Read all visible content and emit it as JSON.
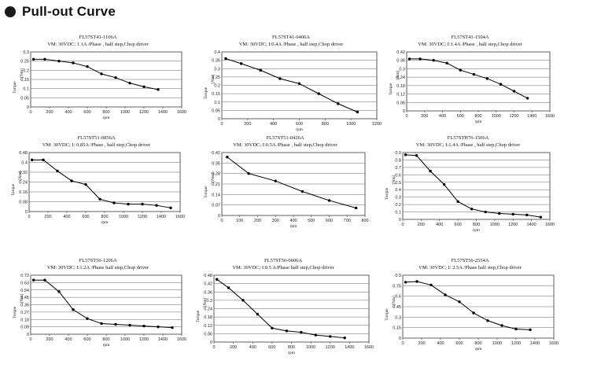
{
  "page": {
    "title": "Pull-out Curve"
  },
  "chart_data": [
    {
      "type": "line",
      "title": "FL57ST41-1106A",
      "subtitle": "VM: 30VDC;  1.1A /Phase , half step,Chop driver",
      "xlabel": "rpm",
      "ylabel": "Torque",
      "unit": "[Nm]",
      "xlim": [
        0,
        1600
      ],
      "xticks": [
        0,
        200,
        400,
        600,
        800,
        1000,
        1200,
        1400,
        1600
      ],
      "ylim": [
        0,
        0.3
      ],
      "yticks": [
        "0",
        "0.05",
        "0.1",
        "0.15",
        "0.2",
        "0.25",
        "0.3"
      ],
      "x": [
        30,
        150,
        300,
        450,
        600,
        750,
        900,
        1050,
        1200,
        1350
      ],
      "y": [
        0.26,
        0.26,
        0.25,
        0.24,
        0.22,
        0.18,
        0.16,
        0.13,
        0.11,
        0.095
      ]
    },
    {
      "type": "line",
      "title": "FL57ST41-0406A",
      "subtitle": "VM: 30VDC;  I:0.4A /Phase , half step,Chop driver",
      "xlabel": "rpm",
      "ylabel": "Torque",
      "unit": "[Nm]",
      "xlim": [
        0,
        1200
      ],
      "xticks": [
        0,
        200,
        400,
        600,
        800,
        1000,
        1200
      ],
      "ylim": [
        0,
        0.4
      ],
      "yticks": [
        "0",
        "0.05",
        "0.1",
        "0.15",
        "0.2",
        "0.25",
        "0.3",
        "0.35",
        "0.4"
      ],
      "x": [
        30,
        150,
        300,
        450,
        600,
        750,
        900,
        1050
      ],
      "y": [
        0.36,
        0.33,
        0.29,
        0.24,
        0.21,
        0.15,
        0.09,
        0.04
      ]
    },
    {
      "type": "line",
      "title": "FL57ST41-1504A",
      "subtitle": "VM: 30VDC;  I:1.4A /Phase , half step,Chop driver",
      "xlabel": "rpm",
      "ylabel": "Torque",
      "unit": "[Nm]",
      "xlim": [
        0,
        1600
      ],
      "xticks": [
        0,
        200,
        400,
        600,
        800,
        1000,
        1200,
        1400,
        1600
      ],
      "ylim": [
        0,
        0.42
      ],
      "yticks": [
        "0",
        "0.06",
        "0.12",
        "0.18",
        "0.24",
        "0.3",
        "0.36",
        "0.42"
      ],
      "x": [
        30,
        150,
        300,
        450,
        600,
        750,
        900,
        1050,
        1200,
        1350
      ],
      "y": [
        0.37,
        0.37,
        0.36,
        0.34,
        0.29,
        0.26,
        0.23,
        0.19,
        0.14,
        0.09
      ]
    },
    {
      "type": "line",
      "title": "FL57ST51-0856A",
      "subtitle": "VM: 30VDC;  I: 0.85A /Phase , half step,Chop driver",
      "xlabel": "rpm",
      "ylabel": "Torque",
      "unit": "[Nm]",
      "xlim": [
        0,
        1600
      ],
      "xticks": [
        0,
        200,
        400,
        600,
        800,
        1000,
        1200,
        1400,
        1600
      ],
      "ylim": [
        0,
        0.48
      ],
      "yticks": [
        "0",
        "0.08",
        "0.16",
        "0.24",
        "0.32",
        "0.4",
        "0.48"
      ],
      "x": [
        30,
        150,
        300,
        450,
        600,
        750,
        900,
        1050,
        1200,
        1350,
        1500
      ],
      "y": [
        0.42,
        0.42,
        0.33,
        0.25,
        0.22,
        0.1,
        0.07,
        0.06,
        0.06,
        0.05,
        0.03
      ]
    },
    {
      "type": "line",
      "title": "FL57ST51-0426A",
      "subtitle": "VM: 30VDC;  I:0.5A /Phase , half step,Chop driver",
      "xlabel": "rpm",
      "ylabel": "Torque",
      "unit": "[Nm]",
      "xlim": [
        0,
        800
      ],
      "xticks": [
        0,
        100,
        200,
        300,
        400,
        500,
        600,
        700,
        800
      ],
      "ylim": [
        0,
        0.42
      ],
      "yticks": [
        "0",
        "0.07",
        "0.14",
        "0.21",
        "0.28",
        "0.35",
        "0.42"
      ],
      "x": [
        30,
        150,
        300,
        450,
        600,
        750
      ],
      "y": [
        0.39,
        0.28,
        0.23,
        0.16,
        0.1,
        0.05
      ]
    },
    {
      "type": "line",
      "title": "FL57STH76-1506A",
      "subtitle": "VM: 30VDC;  I:1.4A /Phase , half step,Chop driver",
      "xlabel": "rpm",
      "ylabel": "Torque",
      "unit": "[Nm]",
      "xlim": [
        0,
        1600
      ],
      "xticks": [
        0,
        200,
        400,
        600,
        800,
        1000,
        1200,
        1400,
        1600
      ],
      "ylim": [
        0,
        0.9
      ],
      "yticks": [
        "0",
        "0.1",
        "0.2",
        "0.3",
        "0.4",
        "0.5",
        "0.6",
        "0.7",
        "0.8",
        "0.9"
      ],
      "x": [
        30,
        150,
        300,
        450,
        600,
        750,
        900,
        1050,
        1200,
        1350,
        1500
      ],
      "y": [
        0.87,
        0.86,
        0.65,
        0.47,
        0.24,
        0.14,
        0.1,
        0.08,
        0.07,
        0.06,
        0.03
      ]
    },
    {
      "type": "line",
      "title": "FL57ST56-1206A",
      "subtitle": "VM: 30VDC;  I:1.2A /Phase  half step,Chop driver",
      "xlabel": "rpm",
      "ylabel": "Torque",
      "unit": "[Nm]",
      "xlim": [
        0,
        1600
      ],
      "xticks": [
        0,
        200,
        400,
        600,
        800,
        1000,
        1200,
        1400,
        1600
      ],
      "ylim": [
        0,
        0.72
      ],
      "yticks": [
        "0",
        "0.09",
        "0.18",
        "0.27",
        "0.36",
        "0.45",
        "0.54",
        "0.63",
        "0.72"
      ],
      "x": [
        30,
        150,
        300,
        450,
        600,
        750,
        900,
        1050,
        1200,
        1350,
        1500
      ],
      "y": [
        0.66,
        0.66,
        0.52,
        0.3,
        0.19,
        0.13,
        0.12,
        0.11,
        0.1,
        0.09,
        0.08
      ]
    },
    {
      "type": "line",
      "title": "FL57ST56-0606A",
      "subtitle": "VM: 30VDC;  I:0.5 A/Phase  half step,Chop driver",
      "xlabel": "rpm",
      "ylabel": "Torque",
      "unit": "[Nm]",
      "xlim": [
        0,
        1600
      ],
      "xticks": [
        0,
        200,
        400,
        600,
        800,
        1000,
        1200,
        1400,
        1600
      ],
      "ylim": [
        0,
        0.48
      ],
      "yticks": [
        "0",
        "0.06",
        "0.12",
        "0.18",
        "0.24",
        "0.3",
        "0.36",
        "0.42",
        "0.48"
      ],
      "x": [
        30,
        150,
        300,
        450,
        600,
        750,
        900,
        1050,
        1200,
        1350
      ],
      "y": [
        0.45,
        0.39,
        0.3,
        0.2,
        0.1,
        0.08,
        0.07,
        0.05,
        0.04,
        0.03
      ]
    },
    {
      "type": "line",
      "title": "FL57ST56-2554A",
      "subtitle": "VM: 30VDC;  I: 2.5A /Phase  half step,Chop driver",
      "xlabel": "rpm",
      "ylabel": "Torque",
      "unit": "[Nm]",
      "xlim": [
        0,
        1600
      ],
      "xticks": [
        0,
        200,
        400,
        600,
        800,
        1000,
        1200,
        1400,
        1600
      ],
      "ylim": [
        0,
        0.9
      ],
      "yticks": [
        "0",
        "0.15",
        "0.3",
        "0.45",
        "0.6",
        "0.75",
        "0.9"
      ],
      "x": [
        30,
        150,
        300,
        450,
        600,
        750,
        900,
        1050,
        1200,
        1350
      ],
      "y": [
        0.8,
        0.81,
        0.76,
        0.62,
        0.52,
        0.36,
        0.25,
        0.18,
        0.13,
        0.12
      ]
    }
  ]
}
